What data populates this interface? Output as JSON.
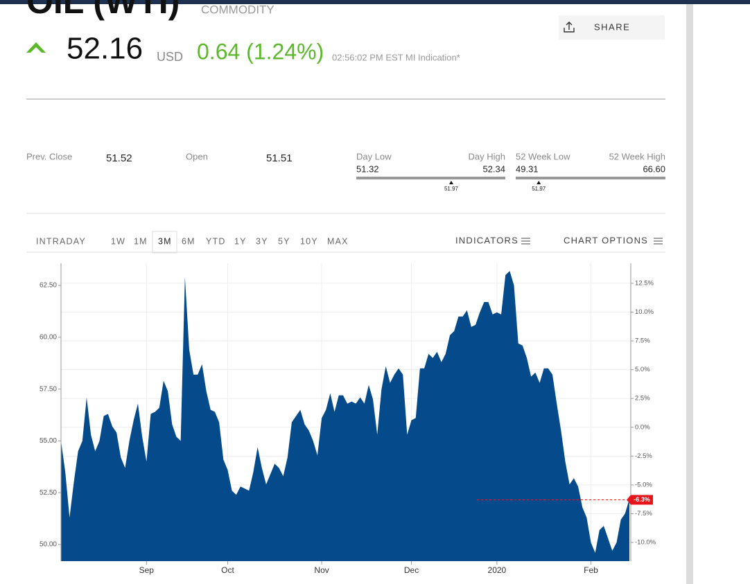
{
  "header": {
    "title": "OIL (WTI)",
    "subtitle": "COMMODITY",
    "price": "52.16",
    "currency": "USD",
    "change": "0.64 (1.24%)",
    "time": "02:56:02 PM EST MI Indication*",
    "share": "SHARE"
  },
  "stats": {
    "prev_close": {
      "label": "Prev. Close",
      "value": "51.52"
    },
    "open": {
      "label": "Open",
      "value": "51.51"
    },
    "day_range": {
      "low_label": "Day Low",
      "high_label": "Day High",
      "low": "51.32",
      "high": "52.34",
      "current": "51.97"
    },
    "week52_range": {
      "low_label": "52 Week Low",
      "high_label": "52 Week High",
      "low": "49.31",
      "high": "66.60",
      "current": "51.97"
    }
  },
  "tabs": {
    "ranges": [
      "INTRADAY",
      "1W",
      "1M",
      "3M",
      "6M",
      "YTD",
      "1Y",
      "3Y",
      "5Y",
      "10Y",
      "MAX"
    ],
    "selected": "3M",
    "indicators": "INDICATORS",
    "chart_options": "CHART OPTIONS"
  },
  "chart_data": {
    "type": "area",
    "color": "#054b8c",
    "grid": true,
    "categories": [
      null,
      null,
      null,
      null,
      null,
      null,
      null,
      null,
      null,
      null,
      null,
      null,
      null,
      null,
      null,
      null,
      null,
      null,
      null,
      null,
      "Sep",
      null,
      null,
      null,
      null,
      null,
      null,
      null,
      null,
      null,
      null,
      null,
      null,
      null,
      null,
      null,
      null,
      null,
      null,
      "Oct",
      null,
      null,
      null,
      null,
      null,
      null,
      null,
      null,
      null,
      null,
      null,
      null,
      null,
      null,
      null,
      null,
      null,
      null,
      null,
      null,
      null,
      "Nov",
      null,
      null,
      null,
      null,
      null,
      null,
      null,
      null,
      null,
      null,
      null,
      null,
      null,
      null,
      null,
      null,
      null,
      null,
      null,
      null,
      "Dec",
      null,
      null,
      null,
      null,
      null,
      null,
      null,
      null,
      null,
      null,
      null,
      null,
      null,
      null,
      null,
      null,
      null,
      null,
      null,
      "2020",
      null,
      null,
      null,
      null,
      null,
      null,
      null,
      null,
      null,
      null,
      null,
      null,
      null,
      null,
      null,
      null,
      null,
      null,
      null,
      null,
      null,
      "Feb",
      null,
      null,
      null,
      null,
      null,
      null,
      null,
      null,
      null
    ],
    "values": [
      55.0,
      53.5,
      51.3,
      53.0,
      54.5,
      55.0,
      57.1,
      55.3,
      54.5,
      55.0,
      56.2,
      56.3,
      55.7,
      55.4,
      54.2,
      53.7,
      55.0,
      56.0,
      56.8,
      55.2,
      54.0,
      56.3,
      56.4,
      56.6,
      57.9,
      57.4,
      55.8,
      55.2,
      55.0,
      62.9,
      59.4,
      58.2,
      58.2,
      58.7,
      57.4,
      56.5,
      56.4,
      55.9,
      54.1,
      53.6,
      52.6,
      52.4,
      52.8,
      52.7,
      52.6,
      53.5,
      54.7,
      53.7,
      52.9,
      53.4,
      53.9,
      53.7,
      53.3,
      54.2,
      55.9,
      56.2,
      56.5,
      55.8,
      55.5,
      55.0,
      54.3,
      56.1,
      56.5,
      57.3,
      56.4,
      57.2,
      57.2,
      56.8,
      56.9,
      56.8,
      57.1,
      56.8,
      57.7,
      57.0,
      55.3,
      57.5,
      58.6,
      57.8,
      58.2,
      58.5,
      58.2,
      55.3,
      56.0,
      56.1,
      58.5,
      58.5,
      59.2,
      59.0,
      59.3,
      58.8,
      59.2,
      60.1,
      60.3,
      61.0,
      61.0,
      61.3,
      60.5,
      60.6,
      61.2,
      61.7,
      61.7,
      61.1,
      61.2,
      61.1,
      63.0,
      63.2,
      62.5,
      59.7,
      59.6,
      59.0,
      58.1,
      58.3,
      57.8,
      58.5,
      58.5,
      58.2,
      56.8,
      55.5,
      54.0,
      52.9,
      53.2,
      52.8,
      51.8,
      51.3,
      50.1,
      49.6,
      50.7,
      50.9,
      50.3,
      49.7,
      50.1,
      51.2,
      51.5,
      52.2
    ],
    "ylim": [
      49.2,
      63.57
    ],
    "yticks": [
      {
        "value": 50,
        "label": "50.00"
      },
      {
        "value": 52.5,
        "label": "52.50"
      },
      {
        "value": 55,
        "label": "55.00"
      },
      {
        "value": 57.5,
        "label": "57.50"
      },
      {
        "value": 60,
        "label": "60.00"
      },
      {
        "value": 62.5,
        "label": "62.50"
      }
    ],
    "y2lim": [
      -11.62,
      14.24
    ],
    "y2ticks": [
      {
        "value": 12.5,
        "label": "12.5%"
      },
      {
        "value": 10,
        "label": "10.0%"
      },
      {
        "value": 7.5,
        "label": "7.5%"
      },
      {
        "value": 5,
        "label": "5.0%"
      },
      {
        "value": 2.5,
        "label": "2.5%"
      },
      {
        "value": 0,
        "label": "0.0%"
      },
      {
        "value": -2.5,
        "label": "-2.5%"
      },
      {
        "value": -5,
        "label": "-5.0%"
      },
      {
        "value": -7.5,
        "label": "-7.5%"
      },
      {
        "value": -10,
        "label": "-10.0%"
      }
    ],
    "current": {
      "value": -6.3,
      "label": "-6.3%",
      "color": "#e8141c"
    }
  }
}
